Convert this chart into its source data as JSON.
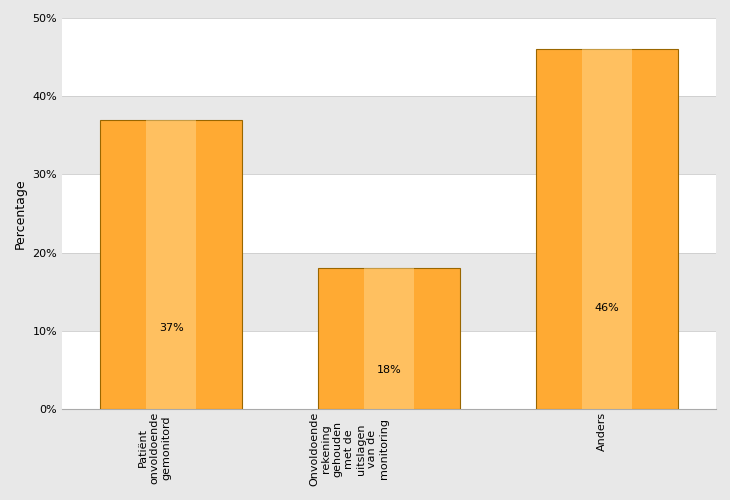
{
  "categories": [
    "Patiënt\nonvoldoende\ngemonitord",
    "Onvoldoende\nrekening\ngehouden\nmet de\nuitslagen\nvan de\nmonitoring",
    "Anders"
  ],
  "values": [
    37,
    18,
    46
  ],
  "bar_color": "#FFAA33",
  "bar_edge_color": "#996600",
  "bar_width": 0.65,
  "ylabel": "Percentage",
  "ylim": [
    0,
    50
  ],
  "yticks": [
    0,
    10,
    20,
    30,
    40,
    50
  ],
  "ytick_labels": [
    "0%",
    "10%",
    "20%",
    "30%",
    "40%",
    "50%"
  ],
  "tick_label_fontsize": 8,
  "ylabel_fontsize": 9,
  "bg_color": "#E8E8E8",
  "plot_bg_white": "#FFFFFF",
  "plot_bg_grey": "#E8E8E8",
  "grid_color": "#CCCCCC",
  "bar_label_fontsize": 8,
  "band_colors": [
    "#FFFFFF",
    "#E8E8E8"
  ],
  "x_positions": [
    0,
    1,
    2
  ],
  "figsize": [
    7.3,
    5.0
  ],
  "dpi": 100
}
